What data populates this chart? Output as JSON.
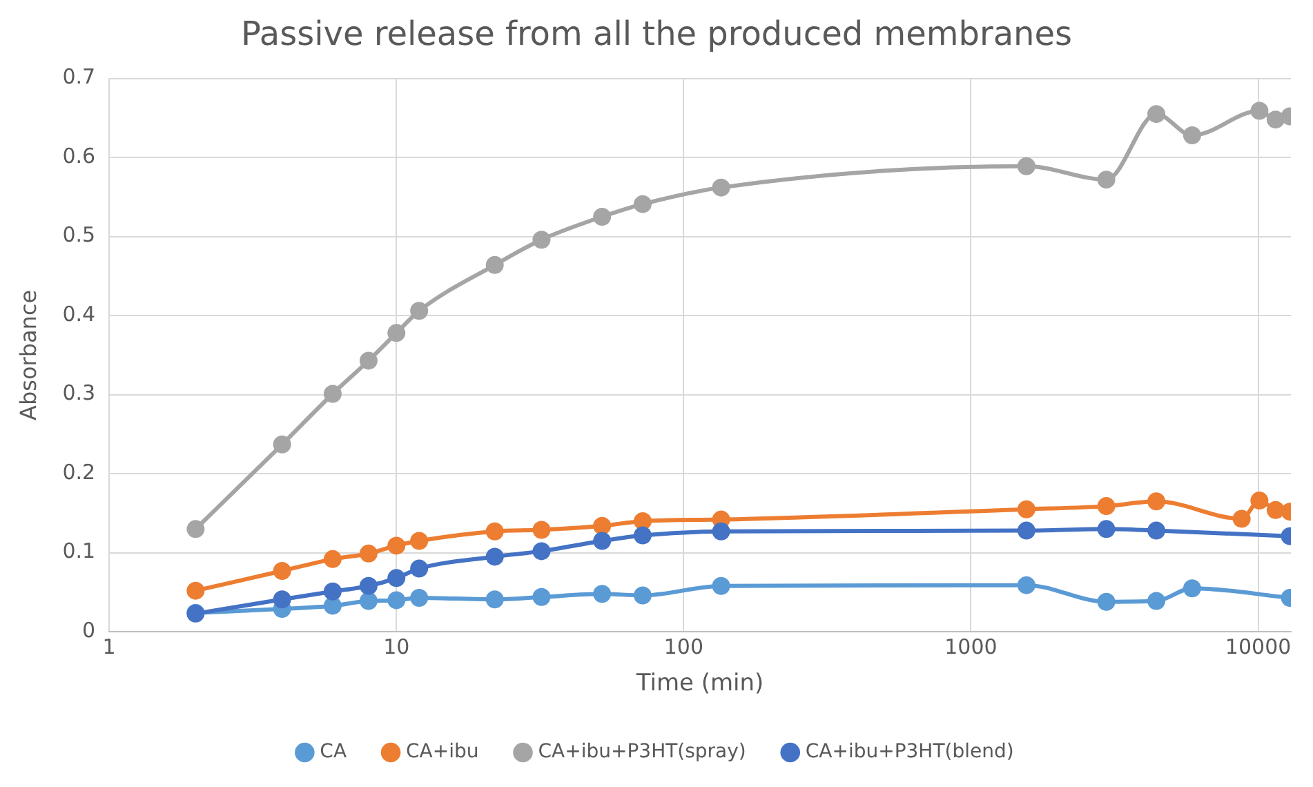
{
  "chart_data": {
    "type": "line",
    "title": "Passive release from all the produced membranes",
    "xlabel": "Time (min)",
    "ylabel": "Absorbance",
    "log": "x",
    "xlim": [
      1,
      13000
    ],
    "xticks": [
      1,
      10,
      100,
      1000,
      10000
    ],
    "ylim": [
      0,
      0.7
    ],
    "yticks": [
      0,
      0.1,
      0.2,
      0.3,
      0.4,
      0.5,
      0.6,
      0.7
    ],
    "grid": true,
    "legend": "bottom",
    "marker": "circle",
    "line_style": "solid",
    "series": [
      {
        "name": "CA",
        "color": "#5b9bd5",
        "x": [
          2,
          4,
          6,
          8,
          10,
          12,
          22,
          32,
          52,
          72,
          135,
          1560,
          2960,
          4420,
          5890,
          12900
        ],
        "values": [
          0.024,
          0.029,
          0.033,
          0.039,
          0.04,
          0.043,
          0.041,
          0.044,
          0.048,
          0.046,
          0.058,
          0.059,
          0.038,
          0.039,
          0.055,
          0.043
        ]
      },
      {
        "name": "CA+ibu",
        "color": "#ed7d31",
        "x": [
          2,
          4,
          6,
          8,
          10,
          12,
          22,
          32,
          52,
          72,
          135,
          1560,
          2960,
          4420,
          8760,
          10100,
          11500,
          12900
        ],
        "values": [
          0.052,
          0.077,
          0.092,
          0.099,
          0.109,
          0.115,
          0.127,
          0.129,
          0.134,
          0.14,
          0.142,
          0.155,
          0.159,
          0.165,
          0.143,
          0.166,
          0.154,
          0.152
        ]
      },
      {
        "name": "CA+ibu+P3HT(spray)",
        "color": "#a5a5a5",
        "x": [
          2,
          4,
          6,
          8,
          10,
          12,
          22,
          32,
          52,
          72,
          135,
          1560,
          2960,
          4420,
          5890,
          10100,
          11500,
          12900
        ],
        "values": [
          0.13,
          0.237,
          0.301,
          0.343,
          0.378,
          0.406,
          0.464,
          0.496,
          0.525,
          0.541,
          0.562,
          0.589,
          0.572,
          0.655,
          0.628,
          0.659,
          0.648,
          0.652
        ]
      },
      {
        "name": "CA+ibu+P3HT(blend)",
        "color": "#4472c4",
        "x": [
          2,
          4,
          6,
          8,
          10,
          12,
          22,
          32,
          52,
          72,
          135,
          1560,
          2960,
          4420,
          12900
        ],
        "values": [
          0.023,
          0.041,
          0.051,
          0.058,
          0.068,
          0.08,
          0.095,
          0.102,
          0.115,
          0.122,
          0.127,
          0.128,
          0.13,
          0.128,
          0.121
        ]
      }
    ]
  }
}
